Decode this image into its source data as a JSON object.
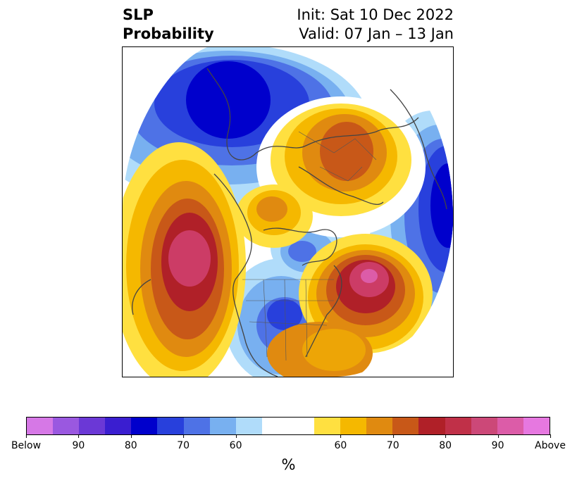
{
  "header": {
    "title_line1": "SLP",
    "title_line2": "Probability",
    "init": "Init: Sat 10 Dec 2022",
    "valid": "Valid: 07 Jan – 13 Jan"
  },
  "colorbar": {
    "unit_label": "%",
    "tick_labels": [
      "Below",
      "90",
      "80",
      "70",
      "60",
      "60",
      "70",
      "80",
      "90",
      "Above"
    ],
    "colors": [
      "#d678e6",
      "#9a58e0",
      "#6b38d6",
      "#3a1ed0",
      "#0000cc",
      "#2840dc",
      "#4e72e6",
      "#78b0f0",
      "#b0dcfa",
      "#ffffff",
      "#ffffff",
      "#ffe040",
      "#f5b800",
      "#e08a10",
      "#c85818",
      "#b02028",
      "#c03048",
      "#cc4878",
      "#dc5ca8",
      "#e678e0"
    ]
  },
  "map": {
    "projection": "north-polar-stereographic",
    "anomaly_colors": {
      "high_core": "#cc3c66",
      "high_ring_1": "#b02028",
      "high_ring_2": "#c85818",
      "high_ring_3": "#e08a10",
      "high_ring_4": "#f5b800",
      "high_ring_5": "#ffe040",
      "low_core": "#0000cc",
      "low_ring_1": "#2840dc",
      "low_ring_2": "#4e72e6",
      "low_ring_3": "#78b0f0",
      "low_ring_4": "#b0dcfa"
    }
  }
}
